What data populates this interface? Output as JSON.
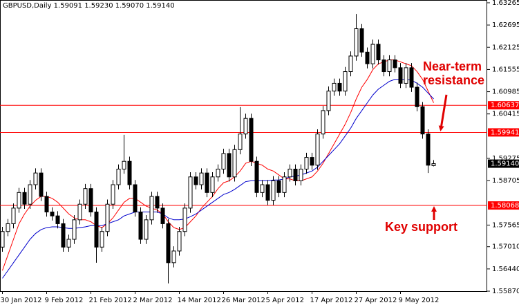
{
  "chart_data": {
    "type": "candlestick",
    "title": "GBPUSD,Daily  1.59091 1.59230 1.59070 1.59140",
    "categories": [
      "30 Jan 2012",
      null,
      null,
      null,
      null,
      null,
      null,
      null,
      "9 Feb 2012",
      null,
      null,
      null,
      null,
      null,
      null,
      null,
      "21 Feb 2012",
      null,
      null,
      null,
      null,
      null,
      null,
      null,
      "2 Mar 2012",
      null,
      null,
      null,
      null,
      null,
      null,
      null,
      "14 Mar 2012",
      null,
      null,
      null,
      null,
      null,
      null,
      null,
      "26 Mar 2012",
      null,
      null,
      null,
      null,
      null,
      null,
      null,
      "5 Apr 2012",
      null,
      null,
      null,
      null,
      null,
      null,
      null,
      "17 Apr 2012",
      null,
      null,
      null,
      null,
      null,
      null,
      null,
      "27 Apr 2012",
      null,
      null,
      null,
      null,
      null,
      null,
      null,
      "9 May 2012",
      null,
      null,
      null,
      null,
      null,
      null
    ],
    "open": [
      1.57,
      1.574,
      1.576,
      1.58,
      1.584,
      1.581,
      1.586,
      1.589,
      1.583,
      1.579,
      1.578,
      1.576,
      1.57,
      1.572,
      1.577,
      1.581,
      1.585,
      1.579,
      1.57,
      1.574,
      1.581,
      1.586,
      1.59,
      1.592,
      1.586,
      1.579,
      1.572,
      1.577,
      1.583,
      1.58,
      1.576,
      1.566,
      1.569,
      1.574,
      1.58,
      1.588,
      1.586,
      1.589,
      1.584,
      1.588,
      1.59,
      1.594,
      1.588,
      1.595,
      1.599,
      1.603,
      1.592,
      1.584,
      1.586,
      1.582,
      1.587,
      1.584,
      1.588,
      1.59,
      1.587,
      1.59,
      1.593,
      1.591,
      1.599,
      1.605,
      1.61,
      1.612,
      1.61,
      1.615,
      1.619,
      1.626,
      1.62,
      1.617,
      1.622,
      1.618,
      1.615,
      1.618,
      1.616,
      1.612,
      1.616,
      1.611,
      1.606,
      1.599,
      1.59091
    ],
    "high": [
      1.5752,
      1.5772,
      1.5812,
      1.5852,
      1.5852,
      1.5872,
      1.5902,
      1.5902,
      1.5842,
      1.5802,
      1.5792,
      1.5772,
      1.5732,
      1.5782,
      1.5822,
      1.5862,
      1.5862,
      1.5802,
      1.5752,
      1.5822,
      1.5872,
      1.5912,
      1.5988,
      1.5932,
      1.5872,
      1.5802,
      1.5782,
      1.5842,
      1.5842,
      1.5812,
      1.5772,
      1.5702,
      1.5752,
      1.5812,
      1.5892,
      1.5892,
      1.5902,
      1.5902,
      1.5892,
      1.5912,
      1.5952,
      1.5952,
      1.5962,
      1.6059,
      1.6042,
      1.6042,
      1.5932,
      1.5872,
      1.5872,
      1.5882,
      1.5882,
      1.5892,
      1.5912,
      1.5912,
      1.5912,
      1.5942,
      1.5942,
      1.6002,
      1.6062,
      1.6112,
      1.6132,
      1.6132,
      1.6162,
      1.6202,
      1.6298,
      1.6272,
      1.6212,
      1.6232,
      1.6232,
      1.6192,
      1.6192,
      1.6192,
      1.6172,
      1.6172,
      1.6172,
      1.6122,
      1.6072,
      1.6002,
      1.5923
    ],
    "low": [
      1.5688,
      1.5728,
      1.5748,
      1.5788,
      1.5798,
      1.5798,
      1.5848,
      1.5818,
      1.5778,
      1.5768,
      1.5748,
      1.5688,
      1.5688,
      1.5708,
      1.5758,
      1.5798,
      1.5778,
      1.566,
      1.5688,
      1.5728,
      1.5798,
      1.5848,
      1.5888,
      1.5848,
      1.5778,
      1.5708,
      1.5708,
      1.5758,
      1.5788,
      1.5748,
      1.5607,
      1.5648,
      1.5678,
      1.5728,
      1.5788,
      1.5848,
      1.5848,
      1.5828,
      1.5828,
      1.5868,
      1.5888,
      1.5868,
      1.5868,
      1.5938,
      1.5978,
      1.5908,
      1.5828,
      1.5828,
      1.5808,
      1.5808,
      1.5828,
      1.5828,
      1.5868,
      1.5858,
      1.5858,
      1.5888,
      1.5898,
      1.5898,
      1.5978,
      1.6038,
      1.6088,
      1.6088,
      1.6088,
      1.6138,
      1.6178,
      1.6188,
      1.6158,
      1.6158,
      1.6168,
      1.6138,
      1.6138,
      1.6148,
      1.6108,
      1.6108,
      1.6098,
      1.6048,
      1.5978,
      1.589,
      1.5907
    ],
    "close": [
      1.574,
      1.576,
      1.58,
      1.584,
      1.581,
      1.586,
      1.589,
      1.583,
      1.579,
      1.578,
      1.576,
      1.57,
      1.572,
      1.577,
      1.581,
      1.585,
      1.579,
      1.57,
      1.574,
      1.581,
      1.586,
      1.59,
      1.592,
      1.586,
      1.579,
      1.572,
      1.577,
      1.583,
      1.58,
      1.576,
      1.566,
      1.569,
      1.574,
      1.58,
      1.588,
      1.586,
      1.589,
      1.584,
      1.588,
      1.59,
      1.594,
      1.588,
      1.595,
      1.599,
      1.603,
      1.592,
      1.584,
      1.586,
      1.582,
      1.587,
      1.584,
      1.588,
      1.59,
      1.587,
      1.59,
      1.593,
      1.591,
      1.599,
      1.605,
      1.61,
      1.612,
      1.61,
      1.615,
      1.619,
      1.626,
      1.62,
      1.617,
      1.622,
      1.618,
      1.615,
      1.618,
      1.616,
      1.612,
      1.616,
      1.611,
      1.606,
      1.599,
      1.591,
      1.5914
    ],
    "series": [
      {
        "color": "#ff0000",
        "values": [
          1.564,
          1.568,
          1.572,
          1.576,
          1.5785,
          1.5805,
          1.582,
          1.583,
          1.583,
          1.5825,
          1.5815,
          1.58,
          1.5785,
          1.5775,
          1.577,
          1.577,
          1.5765,
          1.5755,
          1.575,
          1.576,
          1.5775,
          1.5795,
          1.5815,
          1.5825,
          1.5825,
          1.5815,
          1.5805,
          1.58,
          1.5795,
          1.5785,
          1.5765,
          1.575,
          1.5745,
          1.575,
          1.5765,
          1.578,
          1.58,
          1.5815,
          1.583,
          1.585,
          1.5865,
          1.587,
          1.588,
          1.5895,
          1.5915,
          1.592,
          1.5915,
          1.591,
          1.59,
          1.5895,
          1.5885,
          1.5875,
          1.5875,
          1.587,
          1.587,
          1.5875,
          1.588,
          1.5895,
          1.5915,
          1.594,
          1.5965,
          1.599,
          1.6015,
          1.6045,
          1.608,
          1.611,
          1.613,
          1.6155,
          1.617,
          1.6175,
          1.618,
          1.618,
          1.6175,
          1.617,
          1.6165,
          1.615,
          1.613,
          1.61,
          1.607
        ]
      },
      {
        "color": "#0000cc",
        "values": [
          1.562,
          1.564,
          1.566,
          1.568,
          1.57,
          1.572,
          1.5735,
          1.5745,
          1.575,
          1.5752,
          1.5752,
          1.575,
          1.5748,
          1.5748,
          1.575,
          1.5752,
          1.5755,
          1.5755,
          1.5755,
          1.576,
          1.5765,
          1.577,
          1.578,
          1.5785,
          1.579,
          1.579,
          1.579,
          1.579,
          1.579,
          1.5785,
          1.5775,
          1.577,
          1.577,
          1.5772,
          1.5778,
          1.5785,
          1.5795,
          1.5805,
          1.5815,
          1.5825,
          1.5835,
          1.584,
          1.5848,
          1.5858,
          1.5868,
          1.587,
          1.587,
          1.587,
          1.587,
          1.5872,
          1.5872,
          1.5875,
          1.588,
          1.5882,
          1.5885,
          1.589,
          1.5895,
          1.5905,
          1.592,
          1.5935,
          1.595,
          1.5965,
          1.5985,
          1.6005,
          1.603,
          1.605,
          1.607,
          1.609,
          1.6105,
          1.6115,
          1.6125,
          1.613,
          1.613,
          1.613,
          1.6128,
          1.612,
          1.611,
          1.6095,
          1.608
        ]
      }
    ],
    "hlines": [
      1.60637,
      1.59941,
      1.58068
    ],
    "hline_color": "#ff0000",
    "last_price": {
      "value": 1.5914,
      "label": "1.59140"
    },
    "ylim": [
      1.5587,
      1.63265
    ],
    "yticks": [
      1.63265,
      1.62695,
      1.62125,
      1.61555,
      1.60985,
      1.60415,
      1.59275,
      1.58705,
      1.57565,
      {
        "value": 1.5701,
        "label": "1.57010"
      },
      {
        "value": 1.5644,
        "label": "1.56440"
      },
      {
        "value": 1.5587,
        "label": "1.55870"
      }
    ],
    "annotations": [
      "Near-term",
      "resistance",
      "Key support"
    ]
  }
}
